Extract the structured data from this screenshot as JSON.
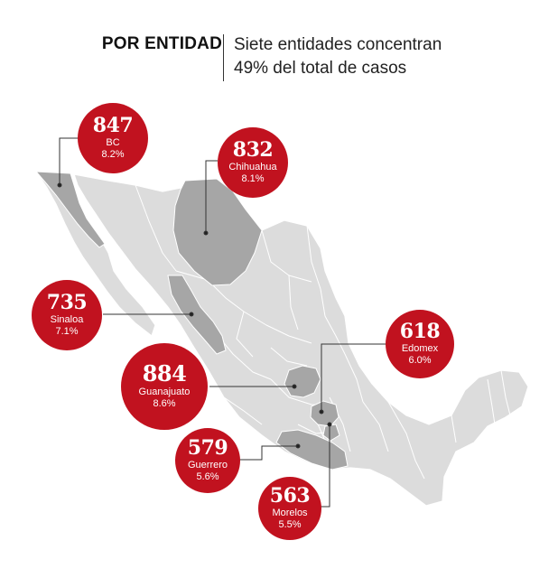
{
  "header": {
    "kicker": "POR ENTIDAD",
    "subtitle_line1": "Siete entidades concentran",
    "subtitle_line2": "49% del total de casos"
  },
  "colors": {
    "accent": "#c1121f",
    "map_base": "#dcdcdc",
    "map_highlight": "#a6a6a6",
    "map_border": "#ffffff",
    "leader": "#333333"
  },
  "states": [
    {
      "value": "847",
      "name": "BC",
      "pct": "8.2%"
    },
    {
      "value": "832",
      "name": "Chihuahua",
      "pct": "8.1%"
    },
    {
      "value": "735",
      "name": "Sinaloa",
      "pct": "7.1%"
    },
    {
      "value": "618",
      "name": "Edomex",
      "pct": "6.0%"
    },
    {
      "value": "884",
      "name": "Guanajuato",
      "pct": "8.6%"
    },
    {
      "value": "579",
      "name": "Guerrero",
      "pct": "5.6%"
    },
    {
      "value": "563",
      "name": "Morelos",
      "pct": "5.5%"
    }
  ]
}
